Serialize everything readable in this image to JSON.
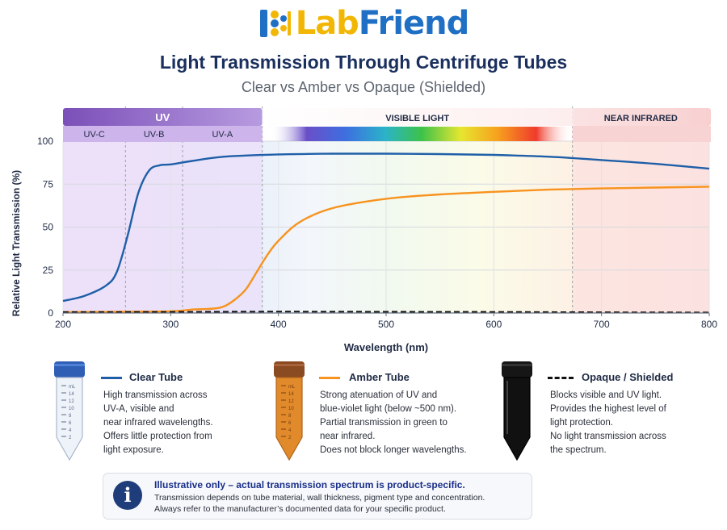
{
  "logo": {
    "part1": "Lab",
    "part2": "Friend"
  },
  "title": "Light Transmission Through Centrifuge Tubes",
  "subtitle": "Clear vs Amber vs Opaque (Shielded)",
  "colors": {
    "clear": "#1f5fa8",
    "amber": "#f7931e",
    "opaque": "#111111",
    "uv_band": "#8a5cc4",
    "nir_band": "#f6c9c9"
  },
  "chart_data": {
    "type": "line",
    "xlabel": "Wavelength (nm)",
    "ylabel": "Relative Light Transmission (%)",
    "xlim": [
      200,
      800
    ],
    "ylim": [
      0,
      100
    ],
    "x_ticks": [
      "200",
      "300",
      "400",
      "500",
      "600",
      "700",
      "800"
    ],
    "y_ticks": [
      "0",
      "25",
      "50",
      "75",
      "100"
    ],
    "grid": true,
    "regions": [
      {
        "label": "UV",
        "from": 200,
        "to": 385
      },
      {
        "label": "VISIBLE LIGHT",
        "from": 385,
        "to": 673
      },
      {
        "label": "NEAR INFRARED",
        "from": 673,
        "to": 800
      }
    ],
    "subregions": [
      {
        "label": "UV-C",
        "from": 200,
        "to": 258
      },
      {
        "label": "UV-B",
        "from": 258,
        "to": 311
      },
      {
        "label": "UV-A",
        "from": 311,
        "to": 385
      }
    ],
    "series": [
      {
        "name": "Clear Tube",
        "style": "solid",
        "x": [
          200,
          220,
          240,
          250,
          260,
          270,
          280,
          290,
          300,
          320,
          350,
          400,
          450,
          500,
          550,
          600,
          650,
          700,
          750,
          800
        ],
        "y": [
          7,
          10,
          16,
          24,
          45,
          70,
          83,
          86,
          86.5,
          88.5,
          91,
          92.3,
          92.7,
          92.7,
          92.5,
          92,
          91,
          89,
          86.8,
          84
        ]
      },
      {
        "name": "Amber Tube",
        "style": "solid",
        "x": [
          200,
          250,
          300,
          320,
          340,
          350,
          360,
          370,
          380,
          390,
          400,
          420,
          450,
          500,
          550,
          600,
          650,
          700,
          750,
          800
        ],
        "y": [
          0.5,
          0.7,
          1,
          2,
          2.6,
          4,
          8,
          14,
          24,
          34,
          42,
          53,
          61,
          66.5,
          69,
          70.5,
          71.8,
          72.5,
          73,
          73.5
        ]
      },
      {
        "name": "Opaque / Shielded",
        "style": "dashed",
        "x": [
          200,
          300,
          400,
          500,
          600,
          700,
          800
        ],
        "y": [
          0.5,
          0.6,
          0.8,
          0.7,
          0.6,
          0.4,
          0.3
        ]
      }
    ]
  },
  "legend": {
    "clear": {
      "title": "Clear Tube",
      "lines": [
        "High transmission across",
        "UV-A, visible and",
        "near infrared wavelengths.",
        "Offers little protection from",
        "light exposure."
      ]
    },
    "amber": {
      "title": "Amber Tube",
      "lines": [
        "Strong atenuation of UV and",
        "blue-violet light (below ~500 nm).",
        "Partial transmission in green to",
        "near infrared.",
        "Does not block longer wavelengths."
      ]
    },
    "opaque": {
      "title": "Opaque / Shielded",
      "lines": [
        "Blocks visible and UV light.",
        "Provides the highest level of",
        "light protection.",
        "No light transmission across",
        "the spectrum."
      ]
    }
  },
  "tube_marks": [
    "mL",
    "14",
    "12",
    "10",
    "8",
    "6",
    "4",
    "2"
  ],
  "note": {
    "icon": "info-icon",
    "title": "Illustrative only – actual transmission spectrum is product-specific.",
    "line1": "Transmission depends on tube material, wall thickness, pigment type and concentration.",
    "line2": "Always refer to the manufacturer’s documented data for your specific product."
  }
}
